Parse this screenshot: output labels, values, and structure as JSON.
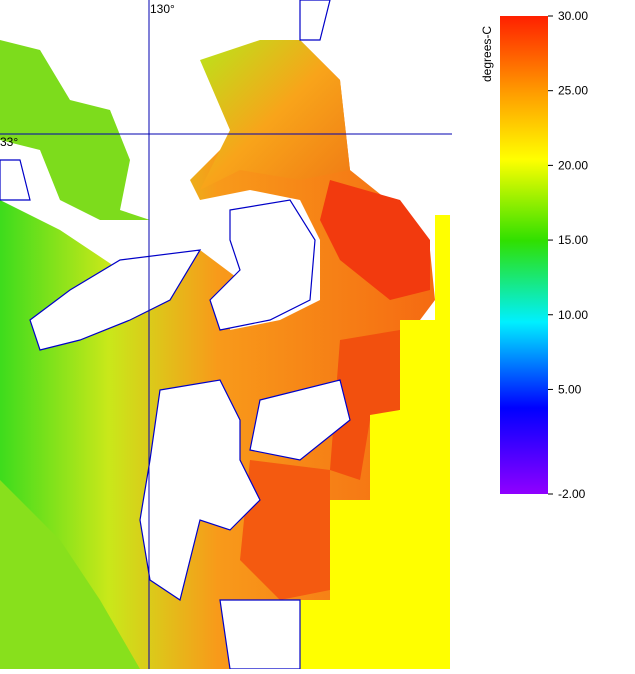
{
  "map": {
    "lon_label": "130°",
    "lat_label": "33°"
  },
  "colorbar": {
    "title": "degrees-C",
    "ticks": [
      {
        "value": 30,
        "label": "30.00"
      },
      {
        "value": 25,
        "label": "25.00"
      },
      {
        "value": 20,
        "label": "20.00"
      },
      {
        "value": 15,
        "label": "15.00"
      },
      {
        "value": 10,
        "label": "10.00"
      },
      {
        "value": 5,
        "label": "5.00"
      },
      {
        "value": -2,
        "label": "-2.00"
      }
    ]
  }
}
